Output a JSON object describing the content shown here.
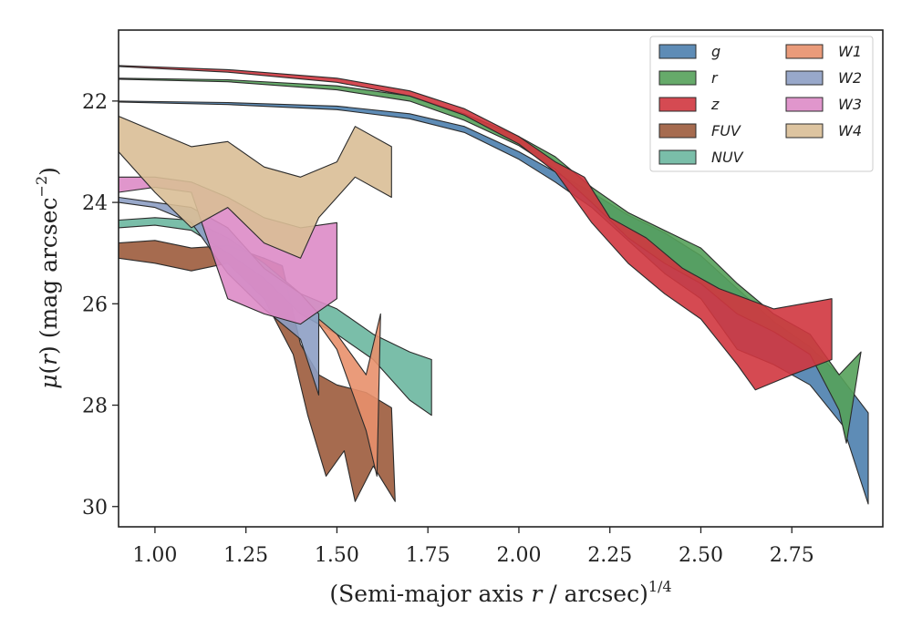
{
  "chart_data": {
    "type": "area",
    "xlabel": "(Semi-major axis r / arcsec)^1/4",
    "xlabel_parts": {
      "pre": "(Semi-major axis ",
      "r": "r",
      "mid": " / arcsec)",
      "sup": "1/4"
    },
    "ylabel": "μ(r) (mag arcsec^-2)",
    "ylabel_parts": {
      "mu": "μ",
      "open": "(",
      "r": "r",
      "close": ")",
      "rest": " (mag arcsec",
      "sup": "−2",
      "end": ")"
    },
    "xlim": [
      0.9,
      3.0
    ],
    "ylim": [
      30.4,
      20.6
    ],
    "y_inverted": true,
    "xticks": [
      1.0,
      1.25,
      1.5,
      1.75,
      2.0,
      2.25,
      2.5,
      2.75
    ],
    "xtick_labels": [
      "1.00",
      "1.25",
      "1.50",
      "1.75",
      "2.00",
      "2.25",
      "2.50",
      "2.75"
    ],
    "yticks": [
      22,
      24,
      26,
      28,
      30
    ],
    "ytick_labels": [
      "22",
      "24",
      "26",
      "28",
      "30"
    ],
    "grid": false,
    "legend_position": "top-right",
    "legend_columns": 2,
    "colors": {
      "g": "#4c7fae",
      "r": "#55a15a",
      "z": "#d0363f",
      "FUV": "#9c5b3c",
      "NUV": "#6cb7a0",
      "W1": "#e8906b",
      "W2": "#8d9fc4",
      "W3": "#dd8bc6",
      "W4": "#d9be96"
    },
    "series": [
      {
        "name": "g",
        "upper": [
          [
            0.9,
            22.0
          ],
          [
            1.2,
            22.03
          ],
          [
            1.5,
            22.1
          ],
          [
            1.7,
            22.25
          ],
          [
            1.85,
            22.5
          ],
          [
            2.0,
            23.0
          ],
          [
            2.1,
            23.4
          ],
          [
            2.2,
            23.8
          ],
          [
            2.3,
            24.25
          ],
          [
            2.4,
            24.6
          ],
          [
            2.5,
            25.05
          ],
          [
            2.6,
            25.7
          ],
          [
            2.7,
            26.35
          ],
          [
            2.8,
            26.85
          ],
          [
            2.88,
            27.4
          ],
          [
            2.96,
            28.15
          ]
        ],
        "lower": [
          [
            0.9,
            22.02
          ],
          [
            1.2,
            22.07
          ],
          [
            1.5,
            22.17
          ],
          [
            1.7,
            22.35
          ],
          [
            1.85,
            22.62
          ],
          [
            2.0,
            23.15
          ],
          [
            2.1,
            23.6
          ],
          [
            2.2,
            24.1
          ],
          [
            2.3,
            24.75
          ],
          [
            2.4,
            25.4
          ],
          [
            2.5,
            25.9
          ],
          [
            2.6,
            26.9
          ],
          [
            2.7,
            27.2
          ],
          [
            2.8,
            27.6
          ],
          [
            2.89,
            28.4
          ],
          [
            2.96,
            29.95
          ]
        ]
      },
      {
        "name": "r",
        "upper": [
          [
            0.9,
            21.55
          ],
          [
            1.2,
            21.58
          ],
          [
            1.5,
            21.7
          ],
          [
            1.7,
            21.9
          ],
          [
            1.85,
            22.25
          ],
          [
            2.0,
            22.7
          ],
          [
            2.1,
            23.1
          ],
          [
            2.2,
            23.7
          ],
          [
            2.3,
            24.2
          ],
          [
            2.4,
            24.55
          ],
          [
            2.5,
            24.9
          ],
          [
            2.6,
            25.6
          ],
          [
            2.7,
            26.2
          ],
          [
            2.8,
            26.6
          ],
          [
            2.88,
            27.4
          ],
          [
            2.94,
            26.95
          ]
        ],
        "lower": [
          [
            0.9,
            21.57
          ],
          [
            1.2,
            21.62
          ],
          [
            1.5,
            21.78
          ],
          [
            1.7,
            22.0
          ],
          [
            1.85,
            22.38
          ],
          [
            2.0,
            22.88
          ],
          [
            2.1,
            23.35
          ],
          [
            2.2,
            24.0
          ],
          [
            2.3,
            24.7
          ],
          [
            2.4,
            25.2
          ],
          [
            2.5,
            25.6
          ],
          [
            2.6,
            26.2
          ],
          [
            2.7,
            26.55
          ],
          [
            2.8,
            27.0
          ],
          [
            2.88,
            28.1
          ],
          [
            2.9,
            28.75
          ]
        ]
      },
      {
        "name": "z",
        "upper": [
          [
            0.9,
            21.3
          ],
          [
            1.2,
            21.38
          ],
          [
            1.5,
            21.55
          ],
          [
            1.7,
            21.8
          ],
          [
            1.85,
            22.15
          ],
          [
            2.0,
            22.7
          ],
          [
            2.1,
            23.2
          ],
          [
            2.18,
            23.5
          ],
          [
            2.25,
            24.3
          ],
          [
            2.35,
            24.7
          ],
          [
            2.45,
            25.3
          ],
          [
            2.55,
            25.7
          ],
          [
            2.7,
            26.1
          ],
          [
            2.86,
            25.9
          ]
        ],
        "lower": [
          [
            0.9,
            21.32
          ],
          [
            1.2,
            21.43
          ],
          [
            1.5,
            21.63
          ],
          [
            1.7,
            21.9
          ],
          [
            1.85,
            22.28
          ],
          [
            2.0,
            22.85
          ],
          [
            2.1,
            23.4
          ],
          [
            2.2,
            24.4
          ],
          [
            2.3,
            25.2
          ],
          [
            2.4,
            25.8
          ],
          [
            2.5,
            26.3
          ],
          [
            2.6,
            27.2
          ],
          [
            2.65,
            27.7
          ],
          [
            2.75,
            27.4
          ],
          [
            2.86,
            27.1
          ]
        ]
      },
      {
        "name": "FUV",
        "upper": [
          [
            0.9,
            24.8
          ],
          [
            1.0,
            24.75
          ],
          [
            1.1,
            24.9
          ],
          [
            1.2,
            24.85
          ],
          [
            1.3,
            25.1
          ],
          [
            1.35,
            25.25
          ],
          [
            1.4,
            26.8
          ],
          [
            1.45,
            27.4
          ],
          [
            1.5,
            27.6
          ],
          [
            1.58,
            27.75
          ],
          [
            1.65,
            28.05
          ]
        ],
        "lower": [
          [
            0.9,
            25.1
          ],
          [
            1.0,
            25.2
          ],
          [
            1.1,
            25.35
          ],
          [
            1.2,
            25.2
          ],
          [
            1.3,
            25.9
          ],
          [
            1.38,
            27.0
          ],
          [
            1.42,
            28.2
          ],
          [
            1.47,
            29.4
          ],
          [
            1.52,
            28.9
          ],
          [
            1.55,
            29.9
          ],
          [
            1.6,
            29.2
          ],
          [
            1.66,
            29.9
          ]
        ]
      },
      {
        "name": "NUV",
        "upper": [
          [
            0.9,
            24.35
          ],
          [
            1.0,
            24.3
          ],
          [
            1.1,
            24.35
          ],
          [
            1.2,
            24.7
          ],
          [
            1.3,
            25.2
          ],
          [
            1.4,
            25.8
          ],
          [
            1.5,
            26.1
          ],
          [
            1.6,
            26.6
          ],
          [
            1.7,
            26.95
          ],
          [
            1.76,
            27.1
          ]
        ],
        "lower": [
          [
            0.9,
            24.5
          ],
          [
            1.0,
            24.45
          ],
          [
            1.1,
            24.55
          ],
          [
            1.2,
            25.0
          ],
          [
            1.3,
            25.5
          ],
          [
            1.4,
            26.2
          ],
          [
            1.5,
            26.6
          ],
          [
            1.6,
            27.1
          ],
          [
            1.7,
            27.9
          ],
          [
            1.76,
            28.2
          ]
        ]
      },
      {
        "name": "W1",
        "upper": [
          [
            1.45,
            26.3
          ],
          [
            1.5,
            26.6
          ],
          [
            1.55,
            27.1
          ],
          [
            1.58,
            27.4
          ],
          [
            1.62,
            26.2
          ]
        ],
        "lower": [
          [
            1.45,
            26.4
          ],
          [
            1.5,
            26.9
          ],
          [
            1.55,
            27.9
          ],
          [
            1.58,
            28.5
          ],
          [
            1.61,
            29.4
          ]
        ]
      },
      {
        "name": "W2",
        "upper": [
          [
            0.9,
            23.9
          ],
          [
            1.0,
            24.0
          ],
          [
            1.1,
            24.1
          ],
          [
            1.2,
            24.5
          ],
          [
            1.3,
            25.3
          ],
          [
            1.4,
            25.8
          ],
          [
            1.45,
            26.2
          ]
        ],
        "lower": [
          [
            0.9,
            24.0
          ],
          [
            1.0,
            24.1
          ],
          [
            1.1,
            24.4
          ],
          [
            1.2,
            25.4
          ],
          [
            1.3,
            26.1
          ],
          [
            1.4,
            26.7
          ],
          [
            1.45,
            27.8
          ]
        ]
      },
      {
        "name": "W3",
        "upper": [
          [
            0.9,
            23.5
          ],
          [
            1.0,
            23.5
          ],
          [
            1.1,
            23.6
          ],
          [
            1.2,
            23.9
          ],
          [
            1.3,
            24.3
          ],
          [
            1.4,
            24.5
          ],
          [
            1.5,
            24.4
          ]
        ],
        "lower": [
          [
            0.9,
            23.8
          ],
          [
            1.0,
            23.7
          ],
          [
            1.1,
            23.8
          ],
          [
            1.2,
            25.9
          ],
          [
            1.3,
            26.2
          ],
          [
            1.4,
            26.4
          ],
          [
            1.5,
            25.9
          ]
        ]
      },
      {
        "name": "W4",
        "upper": [
          [
            0.9,
            22.3
          ],
          [
            1.0,
            22.6
          ],
          [
            1.1,
            22.9
          ],
          [
            1.2,
            22.8
          ],
          [
            1.3,
            23.3
          ],
          [
            1.4,
            23.5
          ],
          [
            1.5,
            23.2
          ],
          [
            1.55,
            22.5
          ],
          [
            1.65,
            22.9
          ]
        ],
        "lower": [
          [
            0.9,
            23.0
          ],
          [
            1.0,
            23.8
          ],
          [
            1.1,
            24.5
          ],
          [
            1.2,
            24.1
          ],
          [
            1.3,
            24.8
          ],
          [
            1.4,
            25.1
          ],
          [
            1.45,
            24.3
          ],
          [
            1.55,
            23.5
          ],
          [
            1.65,
            23.9
          ]
        ]
      }
    ]
  }
}
